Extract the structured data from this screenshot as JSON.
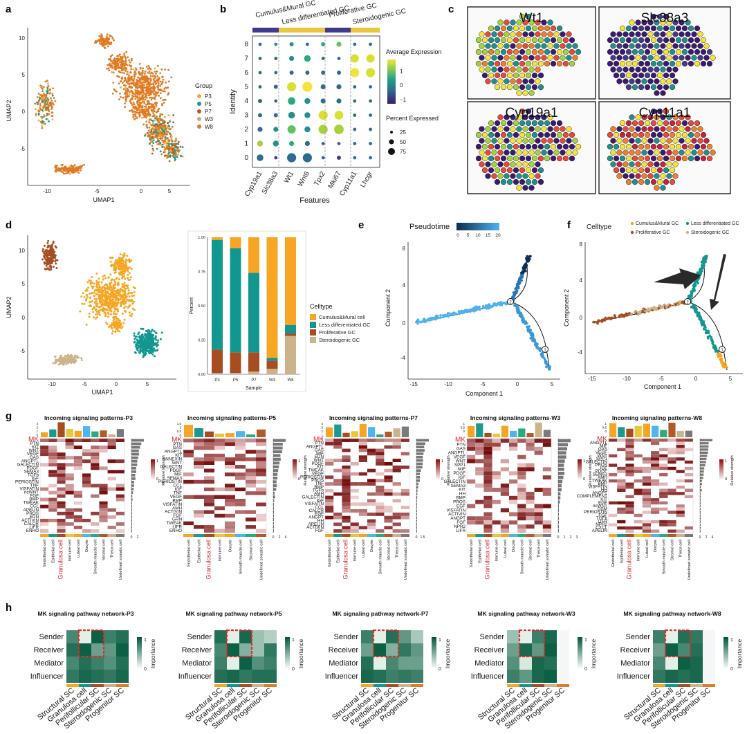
{
  "panel_labels": {
    "a": "a",
    "b": "b",
    "c": "c",
    "d": "d",
    "e": "e",
    "f": "f",
    "g": "g",
    "h": "h"
  },
  "colors": {
    "P3": "#f2a93b",
    "P5": "#1a9a8f",
    "P7": "#b35a2a",
    "W3": "#c9a77f",
    "W8": "#e07a25",
    "cumulus": "#f6a623",
    "lessdiff": "#129690",
    "prolif": "#a64e22",
    "steroid": "#cdb38a",
    "bar_purple": "#3f3a8c",
    "bar_yellow": "#e9c63a"
  },
  "panel_a": {
    "xlabel": "UMAP1",
    "ylabel": "UMAP2",
    "xticks": [
      "-10",
      "-5",
      "0",
      "5"
    ],
    "yticks": [
      "-5",
      "0",
      "5",
      "10"
    ],
    "legend_title": "Group",
    "legend": [
      "P3",
      "P5",
      "P7",
      "W3",
      "W8"
    ]
  },
  "panel_b": {
    "xlabel": "Features",
    "ylabel": "Identity",
    "group_labels": [
      "Cumulus&Mural GC",
      "Less differentiated GC",
      "Proliferative GC",
      "Steroidogenic GC"
    ],
    "features": [
      "Cyp19a1",
      "Slc38a3",
      "Wt1",
      "Wnt6",
      "Tpx2",
      "Mki67",
      "Cyp11a1",
      "Lhcgr"
    ],
    "identities": [
      "0",
      "1",
      "2",
      "3",
      "4",
      "5",
      "6",
      "7",
      "8"
    ],
    "legend_expr_title": "Average Expression",
    "legend_expr_ticks": [
      "1",
      "0",
      "−1"
    ],
    "legend_pct_title": "Percent Expressed",
    "legend_pct_ticks": [
      "25",
      "50",
      "75"
    ]
  },
  "panel_c": {
    "genes": [
      "Wt1",
      "Slc38a3",
      "Cyp19a1",
      "Cyp11a1"
    ]
  },
  "panel_d": {
    "xlabel": "UMAP1",
    "ylabel": "UMAP2",
    "xticks": [
      "-10",
      "-5",
      "0",
      "5"
    ],
    "yticks": [
      "-5",
      "0",
      "5",
      "10"
    ],
    "bar_xlabel": "Sample",
    "bar_ylabel": "Percent",
    "bar_yticks": [
      "0.00",
      "0.25",
      "0.50",
      "0.75",
      "1.00"
    ],
    "legend_title": "Celltype",
    "legend": [
      "Cumulus&Mural cell",
      "Less differentiated GC",
      "Proliferative GC",
      "Steroidogenic GC"
    ]
  },
  "panel_e": {
    "legend_title": "Pseudotime",
    "legend_ticks": [
      "0",
      "5",
      "10",
      "15",
      "20"
    ],
    "xlabel": "Component 1",
    "ylabel": "Component 2",
    "xticks": [
      "-15",
      "-10",
      "-5",
      "0",
      "5"
    ],
    "yticks": [
      "-4",
      "0",
      "4",
      "8"
    ],
    "nodes": [
      "2",
      "1"
    ]
  },
  "panel_f": {
    "legend_title": "Celltype",
    "legend": [
      "Cumulus&Mural GC",
      "Less differentiated GC",
      "Proliferative GC",
      "Steroidogenic GC"
    ],
    "xlabel": "Component 1",
    "ylabel": "Component 2",
    "xticks": [
      "-15",
      "-10",
      "-5",
      "0",
      "5"
    ],
    "yticks": [
      "-4",
      "0",
      "4",
      "8"
    ],
    "nodes": [
      "2",
      "1"
    ]
  },
  "panel_g": {
    "legend_title": "Relative strength",
    "legend_ticks": [
      "1",
      "0"
    ],
    "maps": [
      {
        "title": "Incoming signaling patterns-P3",
        "rows": [
          "MK",
          "PTN",
          "KIT",
          "WNT",
          "VEGF",
          "GAS",
          "ANGPTL",
          "GALECTIN",
          "PDGF",
          "SEMA3",
          "TGFb",
          "IGF",
          "PERIOSTIN",
          "TNF",
          "VISFATIN",
          "ncWNT",
          "FGF",
          "BMP",
          "TWEAK",
          "CCL",
          "APELIN",
          "PROS",
          "EDN",
          "ACTIVIN",
          "CALCR",
          "LIFR",
          "ENHO"
        ],
        "cols": [
          "Endothelial cell",
          "Epithelial cell",
          "Granulosa cell",
          "Immune cell",
          "Luteal cell",
          "Oocyte",
          "Smooth muscle cell",
          "Stromal cell",
          "Theca cell",
          "Undefined somatic cell"
        ],
        "topticks": [
          "3",
          "2",
          "1",
          "0"
        ],
        "sideticks": [
          "0",
          "2"
        ]
      },
      {
        "title": "Incoming signaling patterns-P5",
        "rows": [
          "MK",
          "PTN",
          "GAS",
          "ANGPTL",
          "KIT",
          "ANNEXIN",
          "WNT",
          "GALECTIN",
          "PDGF",
          "MIF",
          "SEMA3",
          "PERIOSTIN",
          "CCL",
          "IGF",
          "TNF",
          "VEGF",
          "BMP",
          "VISFATIN",
          "AMH",
          "ACTIVIN",
          "FGF",
          "GRN",
          "TWEAK",
          "LIFR",
          "ENHO"
        ],
        "cols": [
          "Endothelial cell",
          "Epithelial cell",
          "Granulosa cell",
          "Immune cell",
          "Oocyte",
          "Smooth muscle cell",
          "Stromal cell",
          "Undefined somatic cell"
        ],
        "topticks": [
          "1.5",
          "1",
          "0.5",
          "0"
        ],
        "sideticks": [
          "0",
          "2",
          "4"
        ]
      },
      {
        "title": "Incoming signaling patterns-P7",
        "rows": [
          "MK",
          "PTN",
          "ANGPTL",
          "GAS",
          "MIF",
          "EDN",
          "WNT",
          "PDGF",
          "KIT",
          "TWEAK",
          "VEGF",
          "PERIOSTIN",
          "PROS",
          "TNF",
          "BMP",
          "TGFb",
          "AMH",
          "GALECTIN",
          "IGF",
          "VISFATIN",
          "CCL",
          "CALCR",
          "EGF",
          "ANGPT",
          "HH",
          "APELIN",
          "ACTIVIN",
          "FGF"
        ],
        "cols": [
          "Endothelial cell",
          "Epithelial cell",
          "Granulosa cell",
          "Immune cell",
          "Luteal cell",
          "Oocyte",
          "Smooth muscle cell",
          "Stromal cell",
          "Theca cell",
          "Undefined somatic cell"
        ],
        "topticks": [
          "4",
          "3",
          "2",
          "1",
          "0"
        ],
        "sideticks": [
          "0",
          "1.5"
        ]
      },
      {
        "title": "Incoming signaling patterns-W3",
        "rows": [
          "MK",
          "PTN",
          "GAS",
          "ANGPTL",
          "VEGF",
          "WNT",
          "SPP1",
          "MIF",
          "PDGF",
          "IGF",
          "GALECTIN",
          "SEMA3",
          "KIT",
          "HH",
          "BMP",
          "PROS",
          "EGF",
          "VISFATIN",
          "ACTIVIN",
          "ANGPT",
          "FGF",
          "NPR2",
          "LIFR"
        ],
        "cols": [
          "Endothelial cell",
          "Epithelial cell",
          "Granulosa cell",
          "Immune cell",
          "Luteal cell",
          "Oocyte",
          "Smooth muscle cell",
          "Stromal cell",
          "Theca cell",
          "Undefined somatic cell"
        ],
        "topticks": [
          "1",
          "0.5",
          "0"
        ],
        "sideticks": [
          "0",
          "1",
          "2",
          "3"
        ]
      },
      {
        "title": "Incoming signaling patterns-W8",
        "rows": [
          "MK",
          "ANGPTL",
          "MIF",
          "GAS",
          "VEGF",
          "WNT",
          "SPP1",
          "GALECTIN",
          "PROS",
          "IGF",
          "PDGF",
          "SEMA3",
          "AMH",
          "TWEAK",
          "BMP",
          "VISFATIN",
          "HH",
          "ANGPT",
          "COMPLEMENT",
          "KIT",
          "EGF",
          "ncWNT",
          "OSM",
          "PERIOSTIN",
          "FGF",
          "TGFb",
          "LIFR",
          "NPR2",
          "CXCL",
          "APELIN"
        ],
        "cols": [
          "Endothelial cell",
          "Epithelial cell",
          "Granulosa cell",
          "Immune cell",
          "Luteal cell",
          "Oocyte",
          "Smooth muscle cell",
          "Stromal cell",
          "Theca cell",
          "Undefined somatic cell"
        ],
        "topticks": [
          "1",
          "0.5",
          "0"
        ],
        "sideticks": [
          "0",
          "2",
          "4"
        ]
      }
    ]
  },
  "panel_h": {
    "legend_title": "Importance",
    "legend_ticks": [
      "1",
      "0"
    ],
    "rows": [
      "Sender",
      "Receiver",
      "Mediator",
      "Influencer"
    ],
    "cols": [
      "Structural SC",
      "Granulosa cell",
      "Perifollicular SC",
      "Steroidogenic SC",
      "Progenitor SC"
    ],
    "maps": [
      {
        "title": "MK signaling pathway network-P3",
        "values": [
          [
            0.7,
            0.05,
            0.95,
            0.75,
            0.85
          ],
          [
            0.85,
            0.95,
            0.55,
            0.6,
            0.95
          ],
          [
            0.7,
            0.85,
            0.75,
            0.65,
            0.85
          ],
          [
            0.8,
            0.9,
            0.85,
            0.8,
            0.9
          ]
        ]
      },
      {
        "title": "MK signaling pathway network-P5",
        "values": [
          [
            0.85,
            0.05,
            0.9,
            0.35,
            0.25
          ],
          [
            0.7,
            0.95,
            0.45,
            0.35,
            0.8
          ],
          [
            0.75,
            0.05,
            0.95,
            0.65,
            0.75
          ],
          [
            0.85,
            0.9,
            0.8,
            0.85,
            0.85
          ]
        ]
      },
      {
        "title": "MK signaling pathway network-P7",
        "values": [
          [
            0.75,
            0.05,
            0.85,
            0.6,
            0.3
          ],
          [
            0.55,
            0.95,
            0.45,
            0.8,
            0.6
          ],
          [
            0.85,
            0.05,
            0.7,
            0.55,
            0.55
          ],
          [
            0.9,
            0.85,
            0.75,
            0.8,
            0.75
          ]
        ]
      },
      {
        "title": "MK signaling pathway network-W3",
        "values": [
          [
            0.35,
            0.05,
            0.75,
            0.9,
            0.02
          ],
          [
            0.55,
            0.9,
            0.6,
            0.95,
            0.02
          ],
          [
            0.65,
            0.1,
            0.9,
            0.85,
            0.02
          ],
          [
            0.75,
            0.6,
            0.9,
            0.95,
            0.02
          ]
        ]
      },
      {
        "title": "MK signaling pathway network-W8",
        "values": [
          [
            0.75,
            0.05,
            0.85,
            0.8,
            0.02
          ],
          [
            0.55,
            0.95,
            0.7,
            0.85,
            0.02
          ],
          [
            0.7,
            0.05,
            0.95,
            0.9,
            0.02
          ],
          [
            0.8,
            0.9,
            0.85,
            0.9,
            0.02
          ]
        ]
      }
    ]
  }
}
